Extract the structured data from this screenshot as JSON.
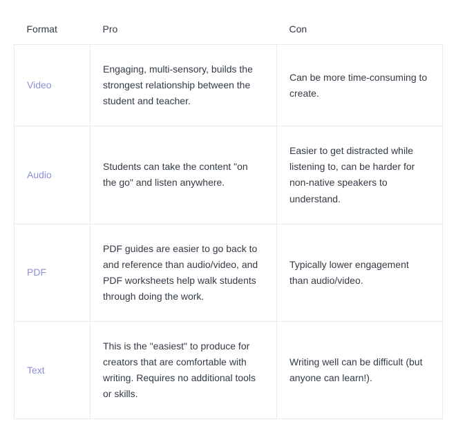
{
  "table": {
    "columns": [
      "Format",
      "Pro",
      "Con"
    ],
    "link_color": "#8a8fd6",
    "text_color": "#333a45",
    "border_color": "#e8eaed",
    "rows": [
      {
        "format": "Video",
        "pro": "Engaging, multi-sensory, builds the strongest relationship between the student and teacher.",
        "con": "Can be more time-consuming to create."
      },
      {
        "format": "Audio",
        "pro": "Students can take the content \"on the go\" and listen anywhere.",
        "con": "Easier to get distracted while listening to, can be harder for non-native speakers to understand."
      },
      {
        "format": "PDF",
        "pro": "PDF guides are easier to go back to and reference than audio/video, and PDF worksheets help walk students through doing the work.",
        "con": "Typically lower engagement than audio/video."
      },
      {
        "format": "Text",
        "pro": "This is the \"easiest\" to produce for creators that are comfortable with writing. Requires no additional tools or skills.",
        "con": "Writing well can be difficult (but anyone can learn!)."
      }
    ]
  }
}
